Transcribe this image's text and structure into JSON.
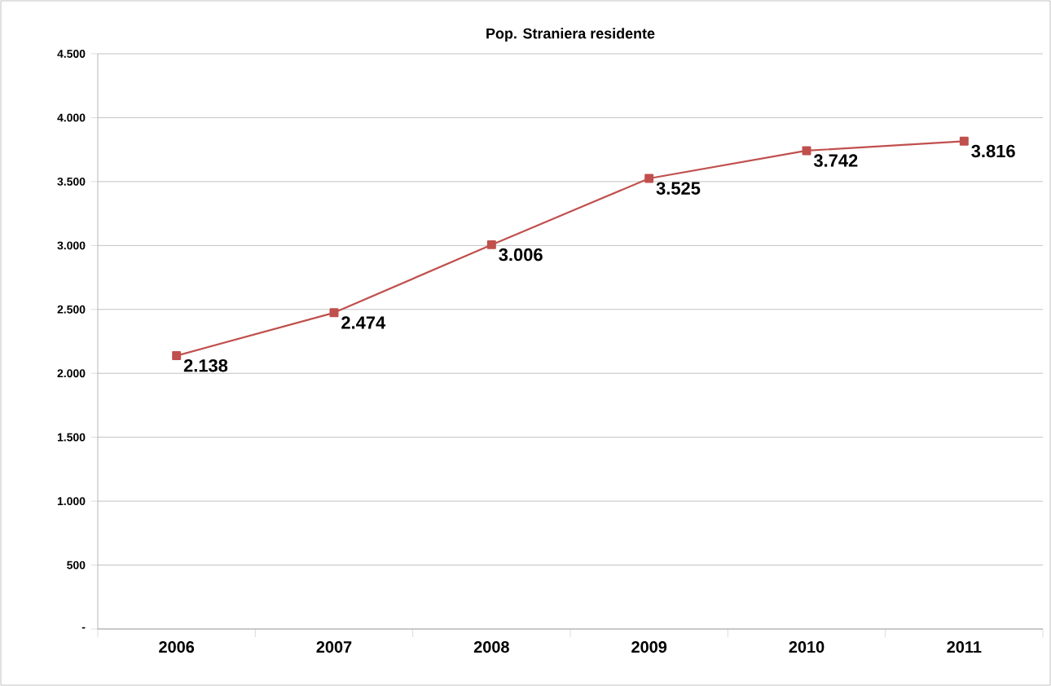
{
  "chart_data": {
    "type": "line",
    "title": "Pop. Straniera residente",
    "categories": [
      "2006",
      "2007",
      "2008",
      "2009",
      "2010",
      "2011"
    ],
    "series": [
      {
        "color": "#c0504d",
        "values": [
          2138,
          2474,
          3006,
          3525,
          3742,
          3816
        ],
        "value_labels": [
          "2.138",
          "2.474",
          "3.006",
          "3.525",
          "3.742",
          "3.816"
        ]
      }
    ],
    "ylim": [
      0,
      4500
    ],
    "yticks": [
      {
        "value": 0,
        "label": "-"
      },
      {
        "value": 500,
        "label": "500"
      },
      {
        "value": 1000,
        "label": "1.000"
      },
      {
        "value": 1500,
        "label": "1.500"
      },
      {
        "value": 2000,
        "label": "2.000"
      },
      {
        "value": 2500,
        "label": "2.500"
      },
      {
        "value": 3000,
        "label": "3.000"
      },
      {
        "value": 3500,
        "label": "3.500"
      },
      {
        "value": 4000,
        "label": "4.000"
      },
      {
        "value": 4500,
        "label": "4.500"
      }
    ],
    "grid": "y",
    "marker": "square",
    "line_style": "solid"
  }
}
